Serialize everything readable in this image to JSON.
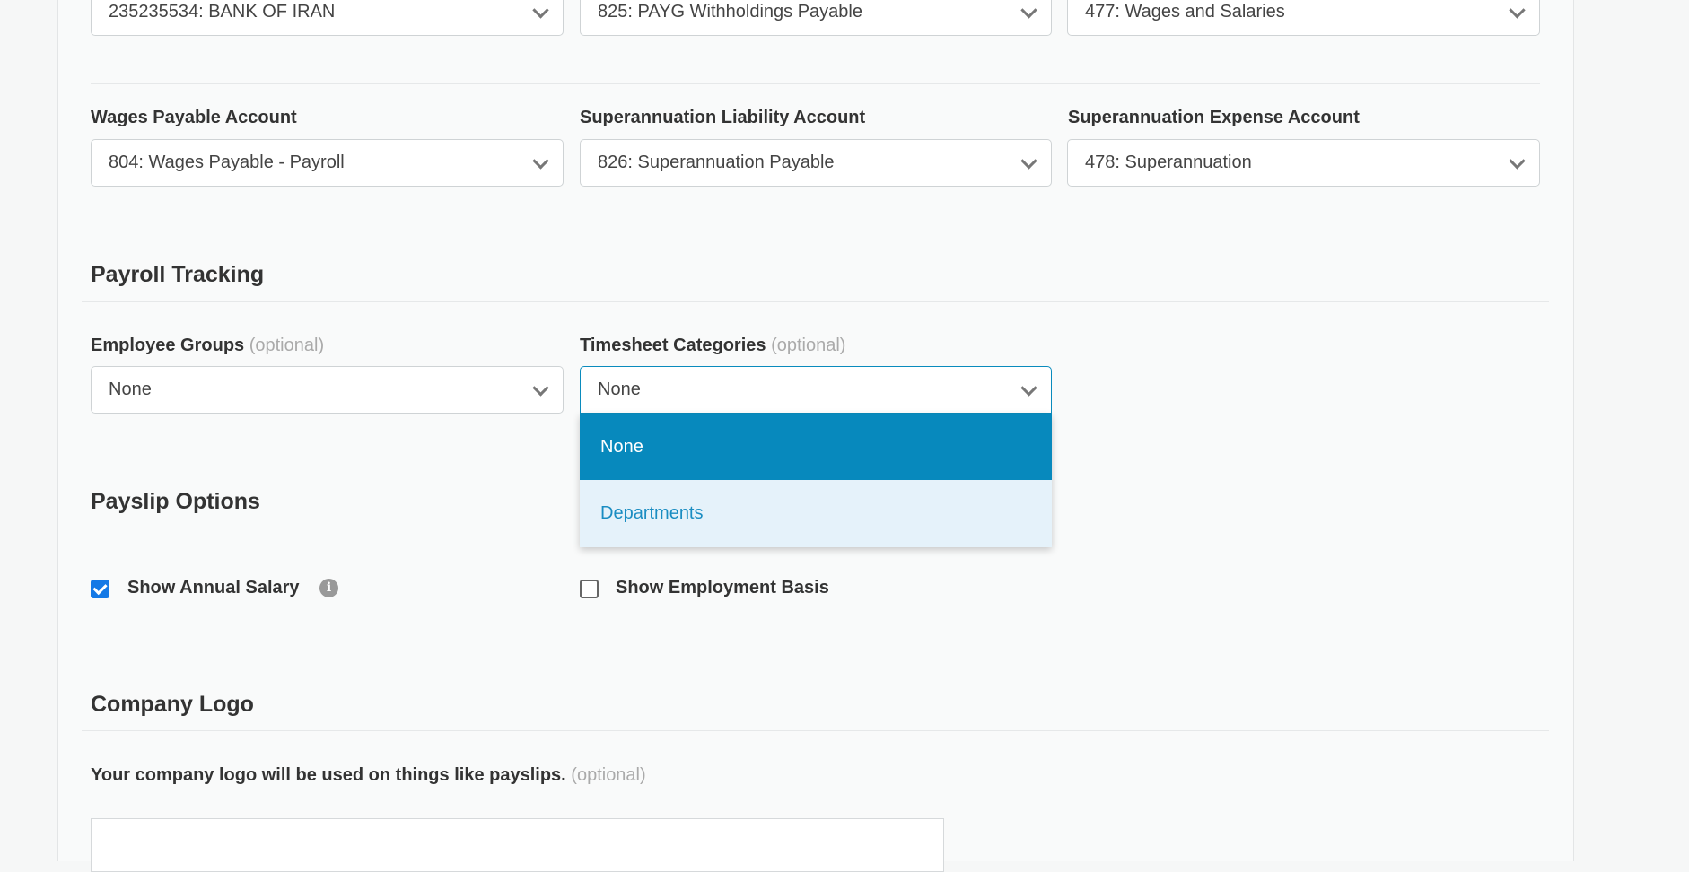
{
  "accounts_row1": [
    {
      "value": "235235534: BANK OF IRAN"
    },
    {
      "value": "825: PAYG Withholdings Payable"
    },
    {
      "value": "477: Wages and Salaries"
    }
  ],
  "accounts_row2": [
    {
      "label": "Wages Payable Account",
      "value": "804: Wages Payable - Payroll"
    },
    {
      "label": "Superannuation Liability Account",
      "value": "826: Superannuation Payable"
    },
    {
      "label": "Superannuation Expense Account",
      "value": "478: Superannuation"
    }
  ],
  "payroll_tracking": {
    "title": "Payroll Tracking",
    "employee_groups": {
      "label": "Employee Groups",
      "optional": "(optional)",
      "value": "None"
    },
    "timesheet_categories": {
      "label": "Timesheet Categories",
      "optional": "(optional)",
      "value": "None",
      "options": [
        "None",
        "Departments"
      ]
    }
  },
  "payslip_options": {
    "title": "Payslip Options",
    "show_annual_salary": {
      "label": "Show Annual Salary",
      "checked": true
    },
    "show_employment_basis": {
      "label": "Show Employment Basis",
      "checked": false
    }
  },
  "company_logo": {
    "title": "Company Logo",
    "description": "Your company logo will be used on things like payslips.",
    "optional": "(optional)"
  },
  "colors": {
    "accent": "#0789bd",
    "checkbox": "#1479e6",
    "option_hover_bg": "#e5f2fa"
  }
}
